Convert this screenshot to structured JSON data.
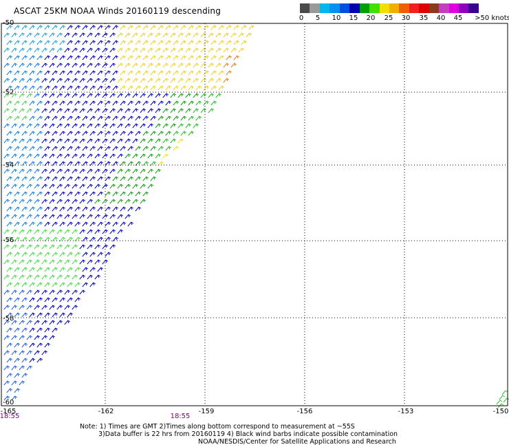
{
  "title": "ASCAT 25KM NOAA Winds 20160119 descending",
  "legend": {
    "colors": [
      "#4a4a4a",
      "#9a9a9a",
      "#00b8f0",
      "#0090f0",
      "#0050e0",
      "#0000b0",
      "#00a000",
      "#40e000",
      "#f0e000",
      "#f0b000",
      "#f06000",
      "#f02020",
      "#e00000",
      "#8b3a1a",
      "#c040c0",
      "#e000e0",
      "#9000c0",
      "#3a0090"
    ],
    "labels": [
      "0",
      "5",
      "10",
      "15",
      "20",
      "25",
      "30",
      "35",
      "40",
      "45",
      ">50 knots"
    ]
  },
  "lat_labels": [
    "-50",
    "-52",
    "-54",
    "-56",
    "-58",
    "-60"
  ],
  "lon_labels": [
    "-165",
    "-162",
    "-159",
    "-156",
    "-153",
    "-150"
  ],
  "times": [
    "18:55",
    "18:55"
  ],
  "notes": [
    "Note: 1) Times are GMT 2)Times along bottom correspond to measurement at ~55S",
    "3)Data buffer is 22 hrs from 20160119 4) Black wind barbs indicate possible contamination",
    "NOAA/NESDIS/Center for Satellite Applications and Research"
  ]
}
